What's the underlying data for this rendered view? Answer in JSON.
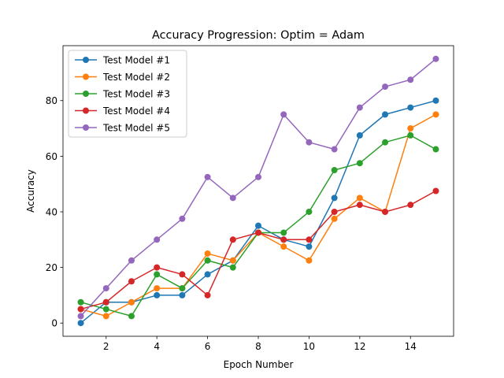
{
  "chart_data": {
    "type": "line",
    "title": "Accuracy Progression: Optim = Adam",
    "xlabel": "Epoch Number",
    "ylabel": "Accuracy",
    "x": [
      1,
      2,
      3,
      4,
      5,
      6,
      7,
      8,
      9,
      10,
      11,
      12,
      13,
      14,
      15
    ],
    "xlim": [
      0.3,
      15.7
    ],
    "ylim": [
      -4.75,
      99.75
    ],
    "xticks": [
      2,
      4,
      6,
      8,
      10,
      12,
      14
    ],
    "yticks": [
      0,
      20,
      40,
      60,
      80
    ],
    "grid": false,
    "legend_position": "top-left",
    "series": [
      {
        "name": "Test Model #1",
        "color": "#1f77b4",
        "values": [
          0,
          7.5,
          7.5,
          10,
          10,
          17.5,
          22.5,
          35,
          30,
          27.5,
          45,
          67.5,
          75,
          77.5,
          80
        ]
      },
      {
        "name": "Test Model #2",
        "color": "#ff7f0e",
        "values": [
          5,
          2.5,
          7.5,
          12.5,
          12.5,
          25,
          22.5,
          32.5,
          27.5,
          22.5,
          37.5,
          45,
          40,
          70,
          75
        ]
      },
      {
        "name": "Test Model #3",
        "color": "#2ca02c",
        "values": [
          7.5,
          5,
          2.5,
          17.5,
          12.5,
          22.5,
          20,
          32.5,
          32.5,
          40,
          55,
          57.5,
          65,
          67.5,
          62.5
        ]
      },
      {
        "name": "Test Model #4",
        "color": "#d62728",
        "values": [
          5,
          7.5,
          15,
          20,
          17.5,
          10,
          30,
          32.5,
          30,
          30,
          40,
          42.5,
          40,
          42.5,
          47.5
        ]
      },
      {
        "name": "Test Model #5",
        "color": "#9467bd",
        "values": [
          2.5,
          12.5,
          22.5,
          30,
          37.5,
          52.5,
          45,
          52.5,
          75,
          65,
          62.5,
          77.5,
          85,
          87.5,
          95
        ]
      }
    ]
  }
}
